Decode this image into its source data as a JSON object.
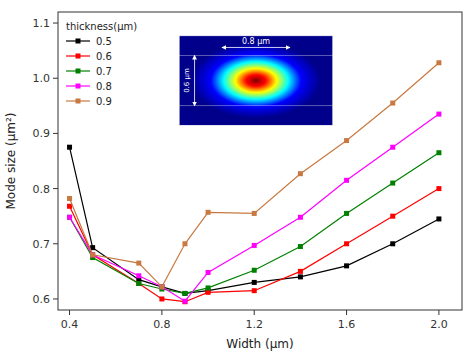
{
  "chart_data": {
    "type": "line",
    "x_label": "Width (μm)",
    "y_label": "Mode size (μm²)",
    "legend_title": "thickness(μm)",
    "legend": "upper left",
    "grid": false,
    "marker": "square",
    "x": [
      0.4,
      0.5,
      0.7,
      0.8,
      0.9,
      1.0,
      1.2,
      1.4,
      1.6,
      1.8,
      2.0
    ],
    "series": [
      {
        "name": "0.5",
        "color": "#000000",
        "values": [
          0.875,
          0.693,
          0.635,
          0.622,
          0.61,
          0.615,
          0.63,
          0.64,
          0.66,
          0.7,
          0.745
        ]
      },
      {
        "name": "0.6",
        "color": "#ff0000",
        "values": [
          0.768,
          0.68,
          0.628,
          0.6,
          0.595,
          0.612,
          0.615,
          0.65,
          0.7,
          0.75,
          0.8
        ]
      },
      {
        "name": "0.7",
        "color": "#008000",
        "values": [
          0.748,
          0.675,
          0.628,
          0.618,
          0.61,
          0.62,
          0.652,
          0.695,
          0.755,
          0.81,
          0.865
        ]
      },
      {
        "name": "0.8",
        "color": "#ff00ff",
        "values": [
          0.748,
          0.68,
          0.642,
          0.622,
          0.596,
          0.648,
          0.697,
          0.748,
          0.815,
          0.875,
          0.935
        ]
      },
      {
        "name": "0.9",
        "color": "#c87941",
        "values": [
          0.782,
          0.68,
          0.665,
          0.622,
          0.7,
          0.757,
          0.755,
          0.827,
          0.887,
          0.955,
          1.028
        ]
      }
    ],
    "xlim": [
      0.35,
      2.1
    ],
    "ylim": [
      0.58,
      1.12
    ],
    "xticks": [
      0.4,
      0.8,
      1.2,
      1.6,
      {
        "value": 2.0,
        "label": "2.0"
      }
    ],
    "yticks": [
      0.6,
      0.7,
      0.8,
      0.9,
      {
        "value": 1.0,
        "label": "1.0"
      },
      1.1
    ],
    "annotations": [
      "0.8 μm",
      "0.6 μm"
    ]
  }
}
